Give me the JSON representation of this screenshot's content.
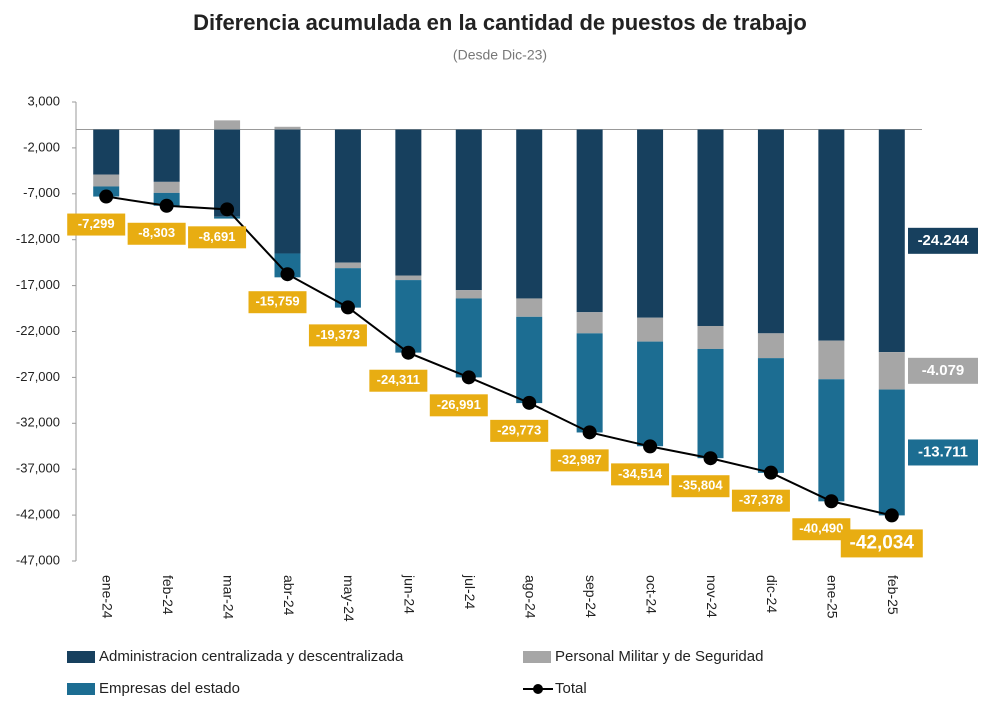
{
  "chart_data": {
    "type": "stacked-bar-line",
    "title": "Diferencia acumulada en la cantidad de puestos de trabajo",
    "subtitle": "(Desde Dic-23)",
    "categories": [
      "ene-24",
      "feb-24",
      "mar-24",
      "abr-24",
      "may-24",
      "jun-24",
      "jul-24",
      "ago-24",
      "sep-24",
      "oct-24",
      "nov-24",
      "dic-24",
      "ene-25",
      "feb-25"
    ],
    "series": [
      {
        "name": "Administracion centralizada y descentralizada",
        "color": "#17405e",
        "values": [
          -4900,
          -5700,
          -9500,
          -13500,
          -14500,
          -15900,
          -17500,
          -18400,
          -19900,
          -20500,
          -21400,
          -22200,
          -23000,
          -24244
        ],
        "value_labels": [
          null,
          null,
          null,
          null,
          null,
          null,
          null,
          null,
          null,
          null,
          null,
          null,
          null,
          "-24.244"
        ]
      },
      {
        "name": "Personal Militar y de Seguridad",
        "color": "#a6a6a6",
        "values": [
          -1300,
          -1200,
          1000,
          300,
          -600,
          -500,
          -900,
          -2000,
          -2300,
          -2600,
          -2500,
          -2700,
          -4200,
          -4079
        ],
        "value_labels": [
          null,
          null,
          null,
          null,
          null,
          null,
          null,
          null,
          null,
          null,
          null,
          null,
          null,
          "-4.079"
        ]
      },
      {
        "name": "Empresas del estado",
        "color": "#1c6d92",
        "values": [
          -1100,
          -1400,
          -200,
          -2600,
          -4300,
          -7900,
          -8600,
          -9400,
          -10800,
          -11400,
          -11900,
          -12500,
          -13300,
          -13711
        ],
        "value_labels": [
          null,
          null,
          null,
          null,
          null,
          null,
          null,
          null,
          null,
          null,
          null,
          null,
          null,
          "-13.711"
        ]
      },
      {
        "name": "Total",
        "color": "#000000",
        "line": true,
        "values": [
          -7299,
          -8303,
          -8691,
          -15759,
          -19373,
          -24311,
          -26991,
          -29773,
          -32987,
          -34514,
          -35804,
          -37378,
          -40490,
          -42034
        ],
        "value_labels": [
          "-7,299",
          "-8,303",
          "-8,691",
          "-15,759",
          "-19,373",
          "-24,311",
          "-26,991",
          "-29,773",
          "-32,987",
          "-34,514",
          "-35,804",
          "-37,378",
          "-40,490",
          "-42,034"
        ]
      }
    ],
    "ylim": [
      -47000,
      3000
    ],
    "yticks": [
      {
        "value": 3000,
        "label": "3,000"
      },
      {
        "value": -2000,
        "label": "-2,000"
      },
      {
        "value": -7000,
        "label": "-7,000"
      },
      {
        "value": -12000,
        "label": "-12,000"
      },
      {
        "value": -17000,
        "label": "-17,000"
      },
      {
        "value": -22000,
        "label": "-22,000"
      },
      {
        "value": -27000,
        "label": "-27,000"
      },
      {
        "value": -32000,
        "label": "-32,000"
      },
      {
        "value": -37000,
        "label": "-37,000"
      },
      {
        "value": -42000,
        "label": "-42,000"
      },
      {
        "value": -47000,
        "label": "-47,000"
      }
    ],
    "label_color": "#e8ad12"
  }
}
